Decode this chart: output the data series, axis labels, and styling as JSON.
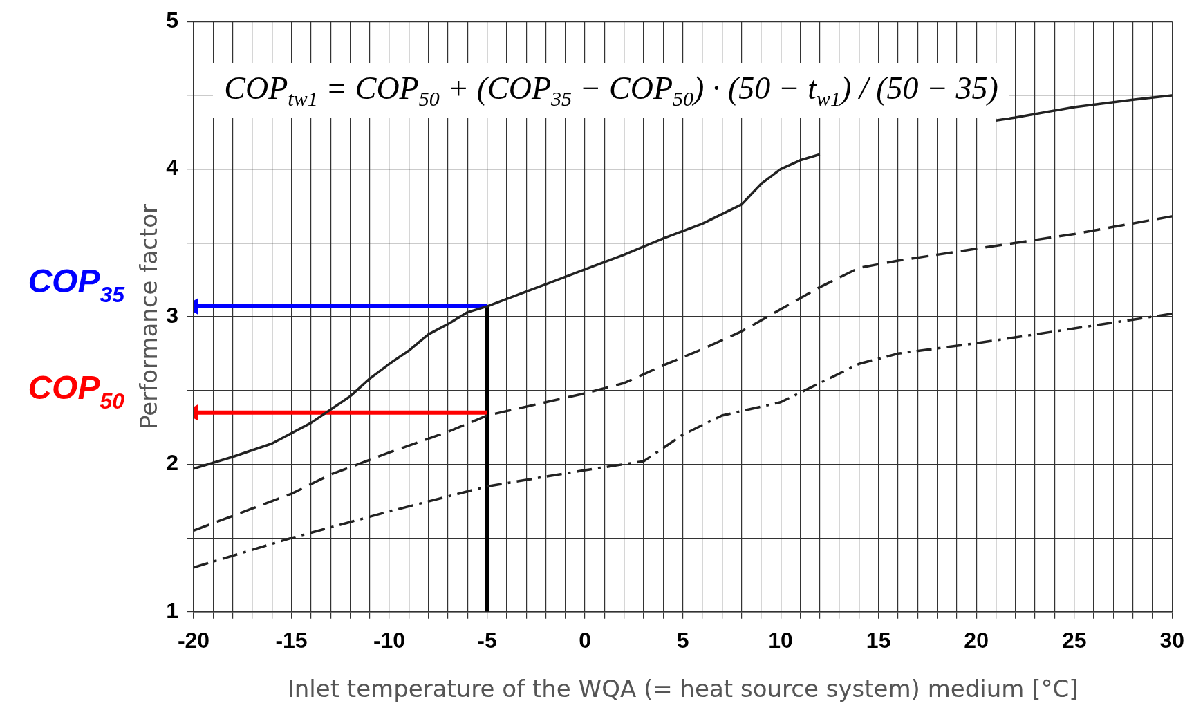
{
  "chart_data": {
    "type": "line",
    "xlabel": "Inlet temperature of the WQA (= heat source system) medium [°C]",
    "ylabel": "Performance factor",
    "annotations": [
      "COP$_{tw1}$ = COP$_{50}$ + (COP$_{35}$ − COP$_{50}$) · (50 − t$_{w1}$) / (50 − 35)"
    ],
    "xlim": [
      -20,
      30
    ],
    "ylim": [
      1,
      5
    ],
    "xticks": [
      -20,
      {
        "value": -19,
        "label": null
      },
      {
        "value": -18,
        "label": null
      },
      {
        "value": -17,
        "label": null
      },
      {
        "value": -16,
        "label": null
      },
      -15,
      {
        "value": -14,
        "label": null
      },
      {
        "value": -13,
        "label": null
      },
      {
        "value": -12,
        "label": null
      },
      {
        "value": -11,
        "label": null
      },
      -10,
      {
        "value": -9,
        "label": null
      },
      {
        "value": -8,
        "label": null
      },
      {
        "value": -7,
        "label": null
      },
      {
        "value": -6,
        "label": null
      },
      -5,
      {
        "value": -4,
        "label": null
      },
      {
        "value": -3,
        "label": null
      },
      {
        "value": -2,
        "label": null
      },
      {
        "value": -1,
        "label": null
      },
      0,
      {
        "value": 1,
        "label": null
      },
      {
        "value": 2,
        "label": null
      },
      {
        "value": 3,
        "label": null
      },
      {
        "value": 4,
        "label": null
      },
      5,
      {
        "value": 6,
        "label": null
      },
      {
        "value": 7,
        "label": null
      },
      {
        "value": 8,
        "label": null
      },
      {
        "value": 9,
        "label": null
      },
      10,
      {
        "value": 11,
        "label": null
      },
      {
        "value": 12,
        "label": null
      },
      {
        "value": 13,
        "label": null
      },
      {
        "value": 14,
        "label": null
      },
      15,
      {
        "value": 16,
        "label": null
      },
      {
        "value": 17,
        "label": null
      },
      {
        "value": 18,
        "label": null
      },
      {
        "value": 19,
        "label": null
      },
      20,
      {
        "value": 21,
        "label": null
      },
      {
        "value": 22,
        "label": null
      },
      {
        "value": 23,
        "label": null
      },
      {
        "value": 24,
        "label": null
      },
      25,
      {
        "value": 26,
        "label": null
      },
      {
        "value": 27,
        "label": null
      },
      {
        "value": 28,
        "label": null
      },
      {
        "value": 29,
        "label": null
      },
      30
    ],
    "yticks": [
      1,
      {
        "value": 1.5,
        "label": null
      },
      2,
      {
        "value": 2.5,
        "label": null
      },
      3,
      {
        "value": 3.5,
        "label": null
      },
      4,
      {
        "value": 4.5,
        "label": null
      },
      5
    ],
    "grid": true,
    "legend": false,
    "marker": "none",
    "series": [
      {
        "color": "#222222",
        "line_style": "solid",
        "x": [
          -20,
          -18,
          -16,
          -14,
          -12,
          -11,
          -10,
          -9,
          -8,
          -7,
          -6,
          -5,
          -4,
          -2,
          0,
          2,
          4,
          6,
          8,
          9,
          10,
          11,
          12,
          16,
          21,
          22,
          25,
          28,
          30
        ],
        "values": [
          1.97,
          2.05,
          2.14,
          2.28,
          2.46,
          2.58,
          2.68,
          2.77,
          2.88,
          2.95,
          3.03,
          3.07,
          3.12,
          3.22,
          3.32,
          3.42,
          3.53,
          3.63,
          3.76,
          3.9,
          4.0,
          4.06,
          4.1,
          null,
          4.33,
          4.35,
          4.42,
          4.47,
          4.5
        ]
      },
      {
        "color": "#222222",
        "line_style": "dashed",
        "x": [
          -20,
          -17,
          -15,
          -13,
          -10,
          -7,
          -5,
          -2,
          0,
          2,
          4,
          6,
          8,
          10,
          12,
          14,
          16,
          18,
          20,
          25,
          30
        ],
        "values": [
          1.55,
          1.7,
          1.8,
          1.93,
          2.08,
          2.22,
          2.33,
          2.42,
          2.48,
          2.55,
          2.67,
          2.78,
          2.9,
          3.05,
          3.2,
          3.33,
          3.38,
          3.42,
          3.46,
          3.56,
          3.68
        ]
      },
      {
        "color": "#222222",
        "line_style": "dashdot",
        "x": [
          -20,
          -15,
          -10,
          -5,
          0,
          3,
          5,
          7,
          10,
          12,
          14,
          16,
          20,
          25,
          30
        ],
        "values": [
          1.3,
          1.5,
          1.68,
          1.85,
          1.96,
          2.02,
          2.2,
          2.33,
          2.42,
          2.55,
          2.68,
          2.75,
          2.82,
          2.92,
          3.02
        ]
      },
      {
        "name": "COP$_{35}$",
        "color": "#0000ff",
        "line_style": "solid",
        "marker": "triangle",
        "x": [
          -5,
          -20
        ],
        "values": [
          3.07,
          3.07
        ]
      },
      {
        "name": "COP$_{50}$",
        "color": "#ff0000",
        "line_style": "solid",
        "marker": "triangle",
        "x": [
          -5,
          -20
        ],
        "values": [
          2.35,
          2.35
        ]
      },
      {
        "color": "#000000",
        "line_style": "solid",
        "x": [
          -5,
          -5
        ],
        "values": [
          1,
          3.07
        ]
      }
    ]
  }
}
